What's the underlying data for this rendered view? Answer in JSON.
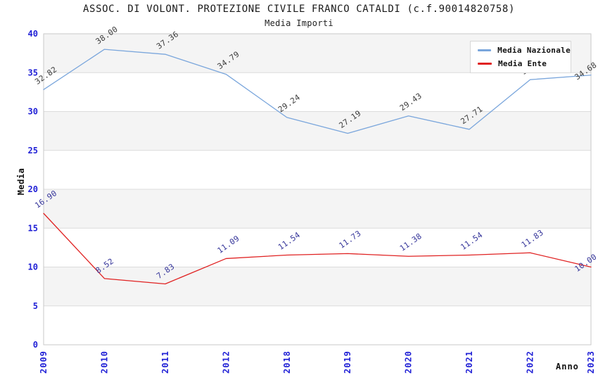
{
  "header": {
    "title": "ASSOC. DI VOLONT. PROTEZIONE CIVILE FRANCO CATALDI (c.f.90014820758)",
    "subtitle": "Media Importi"
  },
  "axes": {
    "x_title": "Anno",
    "y_title": "Media",
    "y_ticks": [
      0,
      5,
      10,
      15,
      20,
      25,
      30,
      35,
      40
    ]
  },
  "legend": {
    "items": [
      {
        "label": "Media Nazionale",
        "color": "#7aa6dc"
      },
      {
        "label": "Media Ente",
        "color": "#e02222"
      }
    ]
  },
  "colors": {
    "tick_label": "#2121d6",
    "band": "#f4f4f4",
    "gridline": "#dcdcdc",
    "plot_border": "#c9c9c9",
    "nazionale_line": "#7aa6dc",
    "nazionale_label": "#3a3a3a",
    "ente_line": "#e02222",
    "ente_label": "#333399"
  },
  "chart_data": {
    "type": "line",
    "title": "ASSOC. DI VOLONT. PROTEZIONE CIVILE FRANCO CATALDI (c.f.90014820758)",
    "subtitle": "Media Importi",
    "xlabel": "Anno",
    "ylabel": "Media",
    "ylim": [
      0,
      40
    ],
    "ytick_step": 5,
    "grid": "horizontal alternating bands, light gray",
    "legend_position": "top-right",
    "categories": [
      "2009",
      "2010",
      "2011",
      "2012",
      "2018",
      "2019",
      "2020",
      "2021",
      "2022",
      "2023"
    ],
    "series": [
      {
        "name": "Media Nazionale",
        "color": "#7aa6dc",
        "label_color": "#3a3a3a",
        "values": [
          32.82,
          38.0,
          37.36,
          34.79,
          29.24,
          27.19,
          29.43,
          27.71,
          34.1,
          34.68
        ],
        "point_labels": [
          "32.82",
          "38.00",
          "37.36",
          "34.79",
          "29.24",
          "27.19",
          "29.43",
          "27.71",
          "34.10",
          "34.68"
        ]
      },
      {
        "name": "Media Ente",
        "color": "#e02222",
        "label_color": "#333399",
        "values": [
          16.9,
          8.52,
          7.83,
          11.09,
          11.54,
          11.73,
          11.38,
          11.54,
          11.83,
          10.0
        ],
        "point_labels": [
          "16.90",
          "8.52",
          "7.83",
          "11.09",
          "11.54",
          "11.73",
          "11.38",
          "11.54",
          "11.83",
          "10.00"
        ]
      }
    ]
  }
}
